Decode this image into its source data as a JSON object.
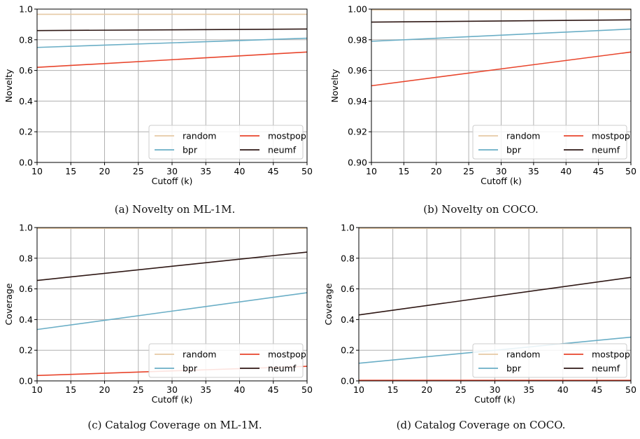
{
  "chart_data": [
    {
      "type": "line",
      "caption": "(a) Novelty on ML-1M.",
      "xlabel": "Cutoff (k)",
      "ylabel": "Novelty",
      "xlim": [
        10,
        50
      ],
      "ylim": [
        0.0,
        1.0
      ],
      "xticks": [
        "10",
        "15",
        "20",
        "25",
        "30",
        "35",
        "40",
        "45",
        "50"
      ],
      "yticks": [
        "0.0",
        "0.2",
        "0.4",
        "0.6",
        "0.8",
        "1.0"
      ],
      "grid": true,
      "legend_position": "lower-right",
      "x": [
        10,
        50
      ],
      "series": [
        {
          "name": "random",
          "color": "#e6c9a4",
          "values": [
            0.966,
            0.966
          ]
        },
        {
          "name": "mostpop",
          "color": "#e8452c",
          "values": [
            0.62,
            0.72
          ]
        },
        {
          "name": "bpr",
          "color": "#6aaec6",
          "values": [
            0.75,
            0.81
          ]
        },
        {
          "name": "neumf",
          "color": "#2e1714",
          "values": [
            0.86,
            0.87
          ]
        }
      ]
    },
    {
      "type": "line",
      "caption": "(b) Novelty on COCO.",
      "xlabel": "Cutoff (k)",
      "ylabel": "Novelty",
      "xlim": [
        10,
        50
      ],
      "ylim": [
        0.9,
        1.0
      ],
      "xticks": [
        "10",
        "15",
        "20",
        "25",
        "30",
        "35",
        "40",
        "45",
        "50"
      ],
      "yticks": [
        "0.90",
        "0.92",
        "0.94",
        "0.96",
        "0.98",
        "1.00"
      ],
      "grid": true,
      "legend_position": "lower-right",
      "x": [
        10,
        50
      ],
      "series": [
        {
          "name": "random",
          "color": "#e6c9a4",
          "values": [
            0.9995,
            0.9995
          ]
        },
        {
          "name": "mostpop",
          "color": "#e8452c",
          "values": [
            0.95,
            0.972
          ]
        },
        {
          "name": "bpr",
          "color": "#6aaec6",
          "values": [
            0.979,
            0.987
          ]
        },
        {
          "name": "neumf",
          "color": "#2e1714",
          "values": [
            0.9915,
            0.993
          ]
        }
      ]
    },
    {
      "type": "line",
      "caption": "(c) Catalog Coverage on ML-1M.",
      "xlabel": "Cutoff (k)",
      "ylabel": "Coverage",
      "xlim": [
        10,
        50
      ],
      "ylim": [
        0.0,
        1.0
      ],
      "xticks": [
        "10",
        "15",
        "20",
        "25",
        "30",
        "35",
        "40",
        "45",
        "50"
      ],
      "yticks": [
        "0.0",
        "0.2",
        "0.4",
        "0.6",
        "0.8",
        "1.0"
      ],
      "grid": true,
      "legend_position": "lower-right",
      "x": [
        10,
        50
      ],
      "series": [
        {
          "name": "random",
          "color": "#e6c9a4",
          "values": [
            0.995,
            0.995
          ]
        },
        {
          "name": "mostpop",
          "color": "#e8452c",
          "values": [
            0.035,
            0.095
          ]
        },
        {
          "name": "bpr",
          "color": "#6aaec6",
          "values": [
            0.335,
            0.575
          ]
        },
        {
          "name": "neumf",
          "color": "#2e1714",
          "values": [
            0.655,
            0.84
          ]
        }
      ]
    },
    {
      "type": "line",
      "caption": "(d) Catalog Coverage on COCO.",
      "xlabel": "Cutoff (k)",
      "ylabel": "Coverage",
      "xlim": [
        10,
        50
      ],
      "ylim": [
        0.0,
        1.0
      ],
      "xticks": [
        "10",
        "15",
        "20",
        "25",
        "30",
        "35",
        "40",
        "45",
        "50"
      ],
      "yticks": [
        "0.0",
        "0.2",
        "0.4",
        "0.6",
        "0.8",
        "1.0"
      ],
      "grid": true,
      "legend_position": "lower-right",
      "x": [
        10,
        50
      ],
      "series": [
        {
          "name": "random",
          "color": "#e6c9a4",
          "values": [
            0.995,
            0.995
          ]
        },
        {
          "name": "mostpop",
          "color": "#e8452c",
          "values": [
            0.004,
            0.004
          ]
        },
        {
          "name": "bpr",
          "color": "#6aaec6",
          "values": [
            0.115,
            0.285
          ]
        },
        {
          "name": "neumf",
          "color": "#2e1714",
          "values": [
            0.43,
            0.675
          ]
        }
      ]
    }
  ]
}
